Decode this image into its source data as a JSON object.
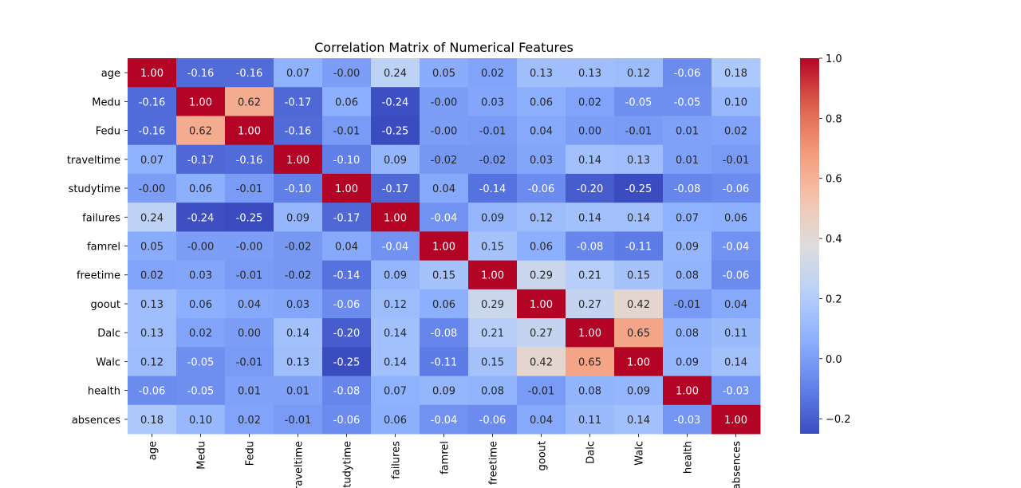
{
  "chart_data": {
    "type": "heatmap",
    "title": "Correlation Matrix of Numerical Features",
    "x_labels": [
      "age",
      "Medu",
      "Fedu",
      "traveltime",
      "studytime",
      "failures",
      "famrel",
      "freetime",
      "goout",
      "Dalc",
      "Walc",
      "health",
      "absences"
    ],
    "y_labels": [
      "age",
      "Medu",
      "Fedu",
      "traveltime",
      "studytime",
      "failures",
      "famrel",
      "freetime",
      "goout",
      "Dalc",
      "Walc",
      "health",
      "absences"
    ],
    "values": [
      [
        1.0,
        -0.16,
        -0.16,
        0.07,
        -0.0,
        0.24,
        0.05,
        0.02,
        0.13,
        0.13,
        0.12,
        -0.06,
        0.18
      ],
      [
        -0.16,
        1.0,
        0.62,
        -0.17,
        0.06,
        -0.24,
        -0.0,
        0.03,
        0.06,
        0.02,
        -0.05,
        -0.05,
        0.1
      ],
      [
        -0.16,
        0.62,
        1.0,
        -0.16,
        -0.01,
        -0.25,
        -0.0,
        -0.01,
        0.04,
        0.0,
        -0.01,
        0.01,
        0.02
      ],
      [
        0.07,
        -0.17,
        -0.16,
        1.0,
        -0.1,
        0.09,
        -0.02,
        -0.02,
        0.03,
        0.14,
        0.13,
        0.01,
        -0.01
      ],
      [
        -0.0,
        0.06,
        -0.01,
        -0.1,
        1.0,
        -0.17,
        0.04,
        -0.14,
        -0.06,
        -0.2,
        -0.25,
        -0.08,
        -0.06
      ],
      [
        0.24,
        -0.24,
        -0.25,
        0.09,
        -0.17,
        1.0,
        -0.04,
        0.09,
        0.12,
        0.14,
        0.14,
        0.07,
        0.06
      ],
      [
        0.05,
        -0.0,
        -0.0,
        -0.02,
        0.04,
        -0.04,
        1.0,
        0.15,
        0.06,
        -0.08,
        -0.11,
        0.09,
        -0.04
      ],
      [
        0.02,
        0.03,
        -0.01,
        -0.02,
        -0.14,
        0.09,
        0.15,
        1.0,
        0.29,
        0.21,
        0.15,
        0.08,
        -0.06
      ],
      [
        0.13,
        0.06,
        0.04,
        0.03,
        -0.06,
        0.12,
        0.06,
        0.29,
        1.0,
        0.27,
        0.42,
        -0.01,
        0.04
      ],
      [
        0.13,
        0.02,
        0.0,
        0.14,
        -0.2,
        0.14,
        -0.08,
        0.21,
        0.27,
        1.0,
        0.65,
        0.08,
        0.11
      ],
      [
        0.12,
        -0.05,
        -0.01,
        0.13,
        -0.25,
        0.14,
        -0.11,
        0.15,
        0.42,
        0.65,
        1.0,
        0.09,
        0.14
      ],
      [
        -0.06,
        -0.05,
        0.01,
        0.01,
        -0.08,
        0.07,
        0.09,
        0.08,
        -0.01,
        0.08,
        0.09,
        1.0,
        -0.03
      ],
      [
        0.18,
        0.1,
        0.02,
        -0.01,
        -0.06,
        0.06,
        -0.04,
        -0.06,
        0.04,
        0.11,
        0.14,
        -0.03,
        1.0
      ]
    ],
    "value_format": "0.00",
    "colormap": "coolwarm",
    "vmin": -0.25,
    "vmax": 1.0,
    "colorbar": {
      "ticks": [
        -0.2,
        0.0,
        0.2,
        0.4,
        0.6,
        0.8,
        1.0
      ],
      "tick_labels": [
        "−0.2",
        "0.0",
        "0.2",
        "0.4",
        "0.6",
        "0.8",
        "1.0"
      ],
      "placement": "right"
    }
  }
}
